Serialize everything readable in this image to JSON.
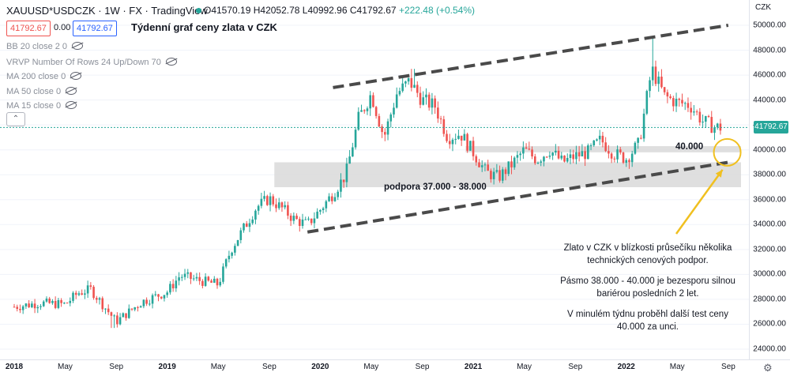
{
  "header": {
    "symbol": "XAUUSD*USDCZK · 1W · FX · TradingView",
    "ohlc": {
      "o": "O41570.19",
      "h": "H42052.78",
      "l": "L40992.96",
      "c": "C41792.67",
      "chg": "+222.48 (+0.54%)"
    },
    "bid": "41792.67",
    "spread": "0.00",
    "ask": "41792.67",
    "title": "Týdenní graf ceny zlata v CZK"
  },
  "indicators": [
    "BB 20 close 2 0",
    "VRVP Number Of Rows 24 Up/Down 70",
    "MA 200 close 0",
    "MA 50 close 0",
    "MA 15 close 0"
  ],
  "collapse_icon": "chevron-up-icon",
  "yaxis": {
    "currency": "CZK",
    "ticks": [
      "50000.00",
      "48000.00",
      "46000.00",
      "44000.00",
      "42000.00",
      "40000.00",
      "38000.00",
      "36000.00",
      "34000.00",
      "32000.00",
      "30000.00",
      "28000.00",
      "26000.00",
      "24000.00"
    ],
    "current": "41792.67"
  },
  "xaxis": {
    "ticks": [
      {
        "label": "2018",
        "bold": true
      },
      {
        "label": "May",
        "bold": false
      },
      {
        "label": "Sep",
        "bold": false
      },
      {
        "label": "2019",
        "bold": true
      },
      {
        "label": "May",
        "bold": false
      },
      {
        "label": "Sep",
        "bold": false
      },
      {
        "label": "2020",
        "bold": true
      },
      {
        "label": "May",
        "bold": false
      },
      {
        "label": "Sep",
        "bold": false
      },
      {
        "label": "2021",
        "bold": true
      },
      {
        "label": "May",
        "bold": false
      },
      {
        "label": "Sep",
        "bold": false
      },
      {
        "label": "2022",
        "bold": true
      },
      {
        "label": "May",
        "bold": false
      },
      {
        "label": "Sep",
        "bold": false
      }
    ]
  },
  "annotations": {
    "level_40": "40.000",
    "support": "podpora 37.000 - 38.000",
    "note": [
      "Zlato v CZK v blízkosti průsečíku několika technických cenových podpor.",
      "Pásmo 38.000 - 40.000 je bezesporu silnou bariérou posledních 2 let.",
      "V minulém týdnu proběhl další test ceny 40.000 za unci."
    ]
  },
  "colors": {
    "up": "#26a69a",
    "down": "#ef5350",
    "trend": "#4a4a4a",
    "zone": "#d9d9d9",
    "circle": "#f0c020"
  },
  "chart_data": {
    "type": "candlestick",
    "title": "Týdenní graf ceny zlata v CZK",
    "timeframe": "1W",
    "ylim": [
      24000,
      51000
    ],
    "range_start": "2018-01",
    "range_end": "2022-09",
    "weekly_close_path": [
      {
        "t": "2018-01",
        "price": 27400
      },
      {
        "t": "2018-03",
        "price": 27700
      },
      {
        "t": "2018-05",
        "price": 27600
      },
      {
        "t": "2018-06",
        "price": 28500
      },
      {
        "t": "2018-07",
        "price": 28800
      },
      {
        "t": "2018-08",
        "price": 27500
      },
      {
        "t": "2018-09",
        "price": 26200
      },
      {
        "t": "2018-11",
        "price": 27800
      },
      {
        "t": "2019-01",
        "price": 28600
      },
      {
        "t": "2019-02",
        "price": 29900
      },
      {
        "t": "2019-04",
        "price": 29400
      },
      {
        "t": "2019-05",
        "price": 29200
      },
      {
        "t": "2019-06",
        "price": 32000
      },
      {
        "t": "2019-08",
        "price": 35400
      },
      {
        "t": "2019-09",
        "price": 36100
      },
      {
        "t": "2019-10",
        "price": 35300
      },
      {
        "t": "2019-11",
        "price": 34400
      },
      {
        "t": "2019-12",
        "price": 34000
      },
      {
        "t": "2020-01",
        "price": 35200
      },
      {
        "t": "2020-02",
        "price": 36500
      },
      {
        "t": "2020-03",
        "price": 38000
      },
      {
        "t": "2020-04",
        "price": 42500
      },
      {
        "t": "2020-05",
        "price": 44500
      },
      {
        "t": "2020-06",
        "price": 41000
      },
      {
        "t": "2020-07",
        "price": 44500
      },
      {
        "t": "2020-08",
        "price": 45500
      },
      {
        "t": "2020-09",
        "price": 44000
      },
      {
        "t": "2020-10",
        "price": 43500
      },
      {
        "t": "2020-11",
        "price": 41000
      },
      {
        "t": "2020-12",
        "price": 41300
      },
      {
        "t": "2021-01",
        "price": 39800
      },
      {
        "t": "2021-02",
        "price": 38200
      },
      {
        "t": "2021-03",
        "price": 37800
      },
      {
        "t": "2021-04",
        "price": 38800
      },
      {
        "t": "2021-05",
        "price": 40000
      },
      {
        "t": "2021-06",
        "price": 39200
      },
      {
        "t": "2021-07",
        "price": 40000
      },
      {
        "t": "2021-08",
        "price": 39000
      },
      {
        "t": "2021-09",
        "price": 39500
      },
      {
        "t": "2021-10",
        "price": 39800
      },
      {
        "t": "2021-11",
        "price": 40800
      },
      {
        "t": "2021-12",
        "price": 39700
      },
      {
        "t": "2022-01",
        "price": 39300
      },
      {
        "t": "2022-02",
        "price": 40500
      },
      {
        "t": "2022-03",
        "price": 46500
      },
      {
        "t": "2022-04",
        "price": 44300
      },
      {
        "t": "2022-05",
        "price": 43800
      },
      {
        "t": "2022-06",
        "price": 43600
      },
      {
        "t": "2022-07",
        "price": 42300
      },
      {
        "t": "2022-08",
        "price": 41800
      }
    ],
    "extremes": {
      "low_2018": 25700,
      "high_2020": 46500,
      "high_2022": 49000,
      "last_close": 41792.67
    },
    "support_zone": [
      37000,
      38000
    ],
    "resistance_line": 40000,
    "upper_trendline": [
      {
        "t": "2020-02",
        "price": 45000
      },
      {
        "t": "2022-09",
        "price": 50000
      }
    ],
    "lower_trendline": [
      {
        "t": "2019-12",
        "price": 33400
      },
      {
        "t": "2022-09",
        "price": 39000
      }
    ]
  }
}
